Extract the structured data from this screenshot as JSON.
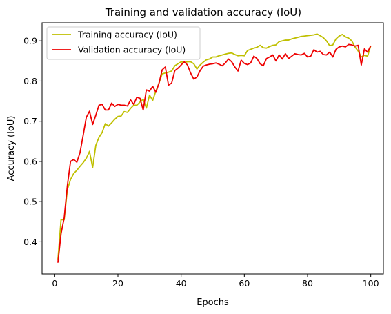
{
  "chart_data": {
    "type": "line",
    "title": "Training and validation accuracy (IoU)",
    "xlabel": "Epochs",
    "ylabel": "Accuracy (IoU)",
    "xlim": [
      -4,
      104
    ],
    "ylim": [
      0.32,
      0.945
    ],
    "xticks": [
      0,
      20,
      40,
      60,
      80,
      100
    ],
    "yticks": [
      0.4,
      0.5,
      0.6,
      0.7,
      0.8,
      0.9
    ],
    "ytick_labels": [
      "0.4",
      "0.5",
      "0.6",
      "0.7",
      "0.8",
      "0.9"
    ],
    "grid": false,
    "legend_position": "upper left",
    "x": [
      1,
      2,
      3,
      4,
      5,
      6,
      7,
      8,
      9,
      10,
      11,
      12,
      13,
      14,
      15,
      16,
      17,
      18,
      19,
      20,
      21,
      22,
      23,
      24,
      25,
      26,
      27,
      28,
      29,
      30,
      31,
      32,
      33,
      34,
      35,
      36,
      37,
      38,
      39,
      40,
      41,
      42,
      43,
      44,
      45,
      46,
      47,
      48,
      49,
      50,
      51,
      52,
      53,
      54,
      55,
      56,
      57,
      58,
      59,
      60,
      61,
      62,
      63,
      64,
      65,
      66,
      67,
      68,
      69,
      70,
      71,
      72,
      73,
      74,
      75,
      76,
      77,
      78,
      79,
      80,
      81,
      82,
      83,
      84,
      85,
      86,
      87,
      88,
      89,
      90,
      91,
      92,
      93,
      94,
      95,
      96,
      97,
      98,
      99,
      100
    ],
    "series": [
      {
        "name": "Training accuracy (IoU)",
        "color": "#bfbf00",
        "values": [
          0.355,
          0.455,
          0.455,
          0.53,
          0.555,
          0.57,
          0.578,
          0.588,
          0.597,
          0.608,
          0.625,
          0.585,
          0.64,
          0.66,
          0.672,
          0.694,
          0.688,
          0.696,
          0.705,
          0.712,
          0.713,
          0.724,
          0.722,
          0.732,
          0.74,
          0.74,
          0.748,
          0.755,
          0.733,
          0.765,
          0.752,
          0.775,
          0.795,
          0.818,
          0.82,
          0.822,
          0.825,
          0.838,
          0.843,
          0.848,
          0.846,
          0.848,
          0.848,
          0.843,
          0.83,
          0.84,
          0.847,
          0.853,
          0.855,
          0.86,
          0.86,
          0.863,
          0.865,
          0.867,
          0.869,
          0.87,
          0.866,
          0.863,
          0.864,
          0.863,
          0.876,
          0.879,
          0.882,
          0.884,
          0.889,
          0.883,
          0.882,
          0.886,
          0.889,
          0.89,
          0.898,
          0.9,
          0.902,
          0.902,
          0.905,
          0.907,
          0.909,
          0.911,
          0.912,
          0.913,
          0.914,
          0.915,
          0.917,
          0.913,
          0.908,
          0.9,
          0.888,
          0.89,
          0.905,
          0.912,
          0.916,
          0.91,
          0.907,
          0.9,
          0.885,
          0.875,
          0.86,
          0.864,
          0.862,
          0.888
        ]
      },
      {
        "name": "Validation accuracy (IoU)",
        "color": "#ee0000",
        "values": [
          0.348,
          0.42,
          0.46,
          0.54,
          0.6,
          0.605,
          0.598,
          0.622,
          0.665,
          0.71,
          0.725,
          0.692,
          0.715,
          0.74,
          0.742,
          0.728,
          0.728,
          0.745,
          0.737,
          0.742,
          0.74,
          0.74,
          0.738,
          0.753,
          0.742,
          0.76,
          0.757,
          0.728,
          0.778,
          0.775,
          0.787,
          0.772,
          0.795,
          0.828,
          0.835,
          0.79,
          0.795,
          0.826,
          0.832,
          0.84,
          0.848,
          0.84,
          0.82,
          0.805,
          0.81,
          0.826,
          0.837,
          0.84,
          0.842,
          0.843,
          0.845,
          0.842,
          0.838,
          0.845,
          0.855,
          0.848,
          0.835,
          0.825,
          0.852,
          0.844,
          0.841,
          0.845,
          0.862,
          0.856,
          0.843,
          0.838,
          0.856,
          0.86,
          0.865,
          0.85,
          0.865,
          0.855,
          0.868,
          0.856,
          0.862,
          0.868,
          0.866,
          0.865,
          0.869,
          0.86,
          0.862,
          0.878,
          0.872,
          0.874,
          0.866,
          0.865,
          0.872,
          0.86,
          0.879,
          0.885,
          0.887,
          0.885,
          0.891,
          0.89,
          0.887,
          0.889,
          0.84,
          0.88,
          0.872,
          0.888
        ]
      }
    ]
  }
}
